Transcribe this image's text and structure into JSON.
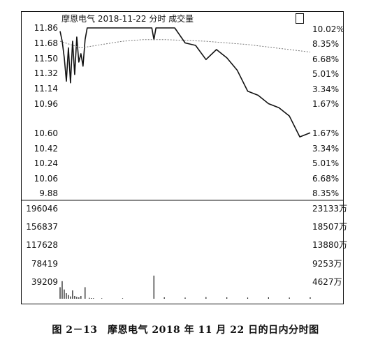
{
  "chart_data": {
    "type": "line",
    "title": "摩恩电气 2018-11-22 分时 成交量",
    "price_axis_left": [
      "11.86",
      "11.68",
      "11.50",
      "11.32",
      "11.14",
      "10.96",
      "10.60",
      "10.42",
      "10.24",
      "10.06",
      "9.88"
    ],
    "price_axis_right": [
      "10.02%",
      "8.35%",
      "6.68%",
      "5.01%",
      "3.34%",
      "1.67%",
      "1.67%",
      "3.34%",
      "5.01%",
      "6.68%",
      "8.35%"
    ],
    "volume_axis_left": [
      "196046",
      "156837",
      "117628",
      "78419",
      "39209"
    ],
    "volume_axis_right": [
      "23133万",
      "18507万",
      "13880万",
      "9253万",
      "4627万"
    ],
    "ylim": [
      9.88,
      11.86
    ],
    "volume_ylim": [
      0,
      196046
    ],
    "series": [
      {
        "name": "",
        "role": "price",
        "x": [
          0,
          2,
          4,
          6,
          8,
          10,
          12,
          14,
          16,
          18,
          20,
          22,
          24,
          26,
          28,
          30,
          32,
          34,
          36,
          38,
          40,
          44,
          50,
          60,
          70,
          80,
          88,
          90,
          92,
          100,
          110,
          120,
          130,
          140,
          150,
          160,
          170,
          180,
          190,
          200,
          210,
          220,
          230,
          240
        ],
        "values": [
          11.82,
          11.7,
          11.5,
          11.22,
          11.62,
          11.2,
          11.7,
          11.3,
          11.75,
          11.45,
          11.55,
          11.4,
          11.72,
          11.86,
          11.86,
          11.86,
          11.86,
          11.86,
          11.86,
          11.86,
          11.86,
          11.86,
          11.86,
          11.86,
          11.86,
          11.86,
          11.86,
          11.72,
          11.86,
          11.86,
          11.86,
          11.68,
          11.65,
          11.48,
          11.6,
          11.5,
          11.35,
          11.1,
          11.05,
          10.95,
          10.9,
          10.8,
          10.55,
          10.6
        ]
      },
      {
        "name": "",
        "role": "average",
        "x": [
          0,
          20,
          40,
          60,
          80,
          100,
          120,
          140,
          160,
          180,
          200,
          220,
          240
        ],
        "values": [
          11.7,
          11.62,
          11.66,
          11.7,
          11.72,
          11.72,
          11.71,
          11.7,
          11.68,
          11.66,
          11.63,
          11.6,
          11.57
        ]
      }
    ],
    "volume": {
      "x": [
        0,
        2,
        4,
        6,
        8,
        10,
        12,
        14,
        16,
        18,
        20,
        24,
        28,
        30,
        32,
        40,
        60,
        90,
        100,
        120,
        140,
        160,
        180,
        200,
        220,
        240
      ],
      "values": [
        25000,
        38000,
        20000,
        12000,
        8000,
        5000,
        18000,
        6000,
        4000,
        3000,
        6000,
        25000,
        2000,
        1500,
        1200,
        1000,
        1000,
        50000,
        3000,
        2500,
        3500,
        3000,
        2500,
        3000,
        2500,
        3000
      ]
    },
    "grid": false,
    "colors": {
      "line": "#111111",
      "average": "#777777",
      "frame": "#111111"
    }
  },
  "caption": "图 2－13　摩恩电气 2018 年 11 月 22 日的日内分时图"
}
